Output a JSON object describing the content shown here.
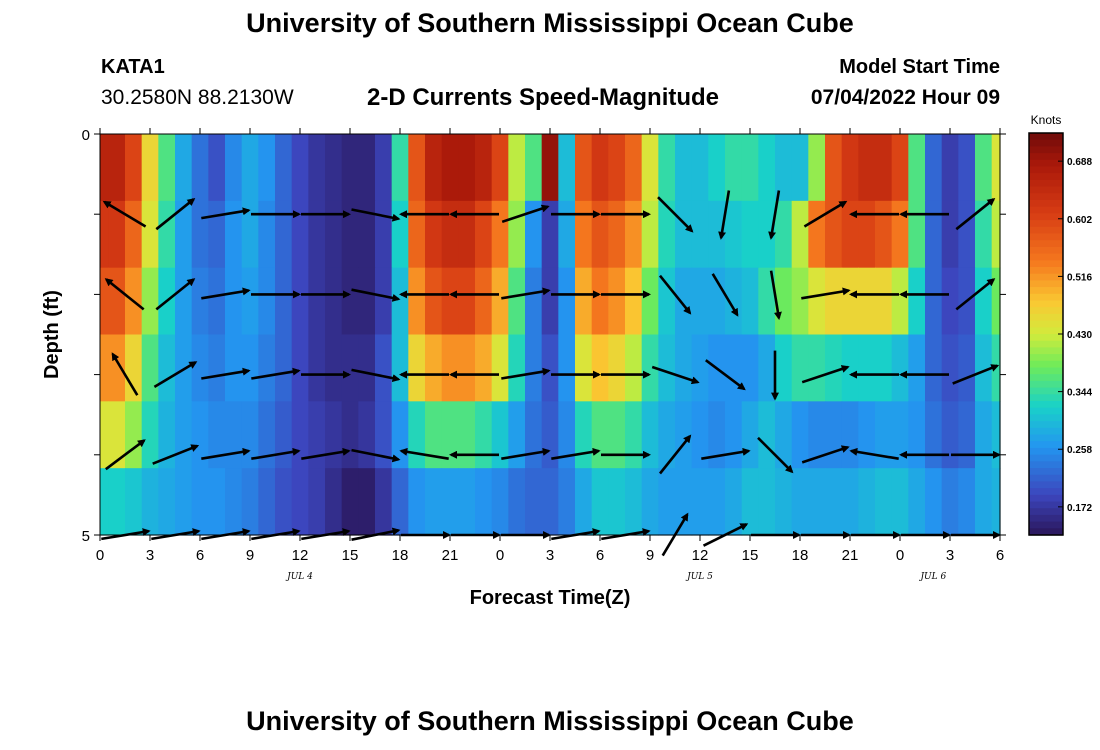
{
  "header": {
    "title": "University of Southern Mississippi Ocean Cube",
    "station_id": "KATA1",
    "coords": "30.2580N  88.2130W",
    "model_start_label": "Model Start Time",
    "model_start_value": "07/04/2022 Hour 09"
  },
  "footer": {
    "title": "University of Southern Mississippi Ocean Cube"
  },
  "chart_data": {
    "type": "heatmap",
    "title": "2-D Currents Speed-Magnitude",
    "xlabel": "Forecast Time(Z)",
    "ylabel": "Depth (ft)",
    "xlim": [
      0,
      54
    ],
    "ylim": [
      0,
      5
    ],
    "x_ticks": [
      0,
      3,
      6,
      9,
      12,
      15,
      18,
      21,
      24,
      27,
      30,
      33,
      36,
      39,
      42,
      45,
      48,
      51,
      54
    ],
    "x_tick_labels": [
      "0",
      "3",
      "6",
      "9",
      "12",
      "15",
      "18",
      "21",
      "0",
      "3",
      "6",
      "9",
      "12",
      "15",
      "18",
      "21",
      "0",
      "3",
      "6"
    ],
    "y_tick_labels": [
      "0",
      "5"
    ],
    "y_tick_values": [
      0,
      5
    ],
    "date_labels": [
      {
        "label": "JUL 4",
        "x": 12
      },
      {
        "label": "JUL 5",
        "x": 36
      },
      {
        "label": "JUL 6",
        "x": 50
      }
    ],
    "colorbar": {
      "label": "Knots",
      "min": 0.13,
      "max": 0.73,
      "ticks": [
        0.688,
        0.602,
        0.516,
        0.43,
        0.344,
        0.258,
        0.172
      ],
      "tick_labels": [
        "0.688",
        "0.602",
        "0.516",
        "0.430",
        "0.344",
        "0.258",
        "0.172"
      ]
    },
    "depths": [
      0,
      1,
      2,
      3,
      4,
      5
    ],
    "speed_profile": {
      "hours": [
        0,
        1,
        2,
        3,
        4,
        5,
        6,
        7,
        8,
        9,
        10,
        11,
        12,
        13,
        14,
        15,
        16,
        17,
        18,
        19,
        20,
        21,
        22,
        23,
        24,
        25,
        26,
        27,
        28,
        29,
        30,
        31,
        32,
        33,
        34,
        35,
        36,
        37,
        38,
        39,
        40,
        41,
        42,
        43,
        44,
        45,
        46,
        47,
        48,
        49,
        50,
        51,
        52,
        53,
        54
      ],
      "layers": [
        [
          0.66,
          0.66,
          0.6,
          0.46,
          0.36,
          0.28,
          0.23,
          0.2,
          0.25,
          0.28,
          0.26,
          0.22,
          0.19,
          0.17,
          0.16,
          0.15,
          0.15,
          0.18,
          0.34,
          0.58,
          0.66,
          0.68,
          0.68,
          0.66,
          0.6,
          0.42,
          0.36,
          0.7,
          0.3,
          0.58,
          0.62,
          0.6,
          0.56,
          0.44,
          0.34,
          0.3,
          0.3,
          0.32,
          0.34,
          0.34,
          0.32,
          0.3,
          0.3,
          0.4,
          0.58,
          0.62,
          0.64,
          0.64,
          0.6,
          0.36,
          0.22,
          0.18,
          0.2,
          0.36,
          0.44
        ],
        [
          0.62,
          0.62,
          0.56,
          0.44,
          0.34,
          0.27,
          0.23,
          0.22,
          0.26,
          0.28,
          0.25,
          0.22,
          0.19,
          0.17,
          0.16,
          0.15,
          0.15,
          0.18,
          0.32,
          0.56,
          0.62,
          0.64,
          0.64,
          0.6,
          0.54,
          0.4,
          0.26,
          0.18,
          0.28,
          0.54,
          0.58,
          0.56,
          0.52,
          0.42,
          0.33,
          0.3,
          0.3,
          0.3,
          0.31,
          0.32,
          0.32,
          0.34,
          0.42,
          0.54,
          0.58,
          0.6,
          0.6,
          0.58,
          0.54,
          0.36,
          0.22,
          0.18,
          0.2,
          0.34,
          0.42
        ],
        [
          0.58,
          0.58,
          0.52,
          0.4,
          0.32,
          0.27,
          0.24,
          0.23,
          0.26,
          0.27,
          0.25,
          0.22,
          0.19,
          0.17,
          0.16,
          0.15,
          0.15,
          0.18,
          0.3,
          0.52,
          0.58,
          0.6,
          0.6,
          0.56,
          0.5,
          0.36,
          0.24,
          0.18,
          0.26,
          0.5,
          0.54,
          0.52,
          0.48,
          0.38,
          0.31,
          0.28,
          0.28,
          0.28,
          0.29,
          0.3,
          0.34,
          0.38,
          0.4,
          0.44,
          0.46,
          0.46,
          0.46,
          0.46,
          0.42,
          0.32,
          0.22,
          0.19,
          0.2,
          0.32,
          0.38
        ],
        [
          0.52,
          0.52,
          0.46,
          0.36,
          0.3,
          0.27,
          0.25,
          0.24,
          0.26,
          0.26,
          0.24,
          0.22,
          0.19,
          0.17,
          0.16,
          0.16,
          0.16,
          0.2,
          0.3,
          0.46,
          0.5,
          0.52,
          0.52,
          0.5,
          0.44,
          0.33,
          0.24,
          0.2,
          0.26,
          0.44,
          0.48,
          0.46,
          0.42,
          0.34,
          0.3,
          0.28,
          0.27,
          0.26,
          0.26,
          0.26,
          0.28,
          0.32,
          0.34,
          0.34,
          0.33,
          0.32,
          0.32,
          0.32,
          0.3,
          0.27,
          0.22,
          0.2,
          0.21,
          0.3,
          0.34
        ],
        [
          0.44,
          0.44,
          0.4,
          0.33,
          0.29,
          0.27,
          0.26,
          0.25,
          0.25,
          0.25,
          0.23,
          0.21,
          0.19,
          0.18,
          0.17,
          0.16,
          0.17,
          0.2,
          0.26,
          0.33,
          0.36,
          0.36,
          0.36,
          0.34,
          0.31,
          0.27,
          0.23,
          0.21,
          0.25,
          0.33,
          0.36,
          0.36,
          0.34,
          0.3,
          0.28,
          0.27,
          0.26,
          0.25,
          0.26,
          0.28,
          0.3,
          0.28,
          0.26,
          0.25,
          0.25,
          0.25,
          0.26,
          0.27,
          0.27,
          0.26,
          0.23,
          0.21,
          0.22,
          0.28,
          0.3
        ],
        [
          0.32,
          0.32,
          0.31,
          0.29,
          0.28,
          0.27,
          0.26,
          0.26,
          0.25,
          0.24,
          0.22,
          0.2,
          0.19,
          0.18,
          0.16,
          0.14,
          0.14,
          0.17,
          0.22,
          0.26,
          0.27,
          0.27,
          0.27,
          0.26,
          0.25,
          0.23,
          0.22,
          0.22,
          0.24,
          0.28,
          0.31,
          0.31,
          0.3,
          0.28,
          0.27,
          0.27,
          0.27,
          0.27,
          0.28,
          0.3,
          0.3,
          0.29,
          0.28,
          0.28,
          0.28,
          0.28,
          0.29,
          0.3,
          0.3,
          0.28,
          0.26,
          0.24,
          0.25,
          0.28,
          0.29
        ]
      ]
    },
    "vectors": {
      "hours": [
        1.5,
        4.5,
        7.5,
        10.5,
        13.5,
        16.5,
        19.5,
        22.5,
        25.5,
        28.5,
        31.5,
        34.5,
        37.5,
        40.5,
        43.5,
        46.5,
        49.5,
        52.5
      ],
      "depths": [
        1,
        2,
        3,
        4,
        5
      ],
      "u": [
        [
          -0.5,
          0.5,
          0.6,
          0.6,
          0.6,
          0.5,
          -0.6,
          -0.6,
          0.6,
          0.6,
          0.6,
          0.4,
          -0.1,
          -0.1,
          0.5,
          -0.6,
          -0.6,
          0.5
        ],
        [
          -0.5,
          0.5,
          0.6,
          0.6,
          0.6,
          0.5,
          -0.6,
          -0.6,
          0.6,
          0.6,
          0.6,
          0.4,
          0.3,
          0.1,
          0.6,
          -0.6,
          -0.6,
          0.5
        ],
        [
          -0.3,
          0.5,
          0.6,
          0.6,
          0.6,
          0.5,
          -0.6,
          -0.6,
          0.6,
          0.6,
          0.6,
          0.6,
          0.4,
          0.0,
          0.6,
          -0.6,
          -0.6,
          0.5
        ],
        [
          0.4,
          0.5,
          0.6,
          0.6,
          0.6,
          0.5,
          -0.6,
          -0.6,
          0.6,
          0.6,
          0.6,
          0.4,
          0.6,
          0.4,
          0.6,
          -0.6,
          -0.6,
          0.5
        ],
        [
          0.6,
          0.6,
          0.6,
          0.6,
          0.6,
          0.5,
          0.6,
          0.6,
          0.6,
          0.6,
          0.6,
          0.3,
          0.6,
          0.6,
          0.6,
          0.6,
          0.6,
          0.5
        ]
      ],
      "v": [
        [
          0.3,
          0.4,
          0.1,
          0.0,
          0.0,
          -0.1,
          0.0,
          0.0,
          0.2,
          0.0,
          0.0,
          -0.4,
          -0.6,
          -0.6,
          0.3,
          0.0,
          0.0,
          0.4
        ],
        [
          0.4,
          0.4,
          0.1,
          0.0,
          0.0,
          -0.1,
          0.0,
          0.0,
          0.1,
          0.0,
          0.0,
          -0.5,
          -0.5,
          -0.6,
          0.1,
          0.0,
          0.0,
          0.4
        ],
        [
          0.5,
          0.3,
          0.1,
          0.1,
          0.0,
          -0.1,
          0.0,
          0.0,
          0.1,
          0.0,
          0.0,
          -0.2,
          -0.3,
          -0.6,
          0.2,
          0.0,
          0.0,
          0.2
        ],
        [
          0.3,
          0.2,
          0.1,
          0.1,
          0.1,
          -0.1,
          0.1,
          0.0,
          0.1,
          0.1,
          0.0,
          0.5,
          0.1,
          -0.4,
          0.2,
          0.1,
          0.0,
          0.0
        ],
        [
          0.1,
          0.1,
          0.1,
          0.1,
          0.1,
          0.1,
          0.0,
          0.0,
          0.0,
          0.1,
          0.1,
          0.5,
          0.3,
          0.0,
          0.0,
          0.0,
          0.0,
          0.0
        ]
      ]
    }
  }
}
